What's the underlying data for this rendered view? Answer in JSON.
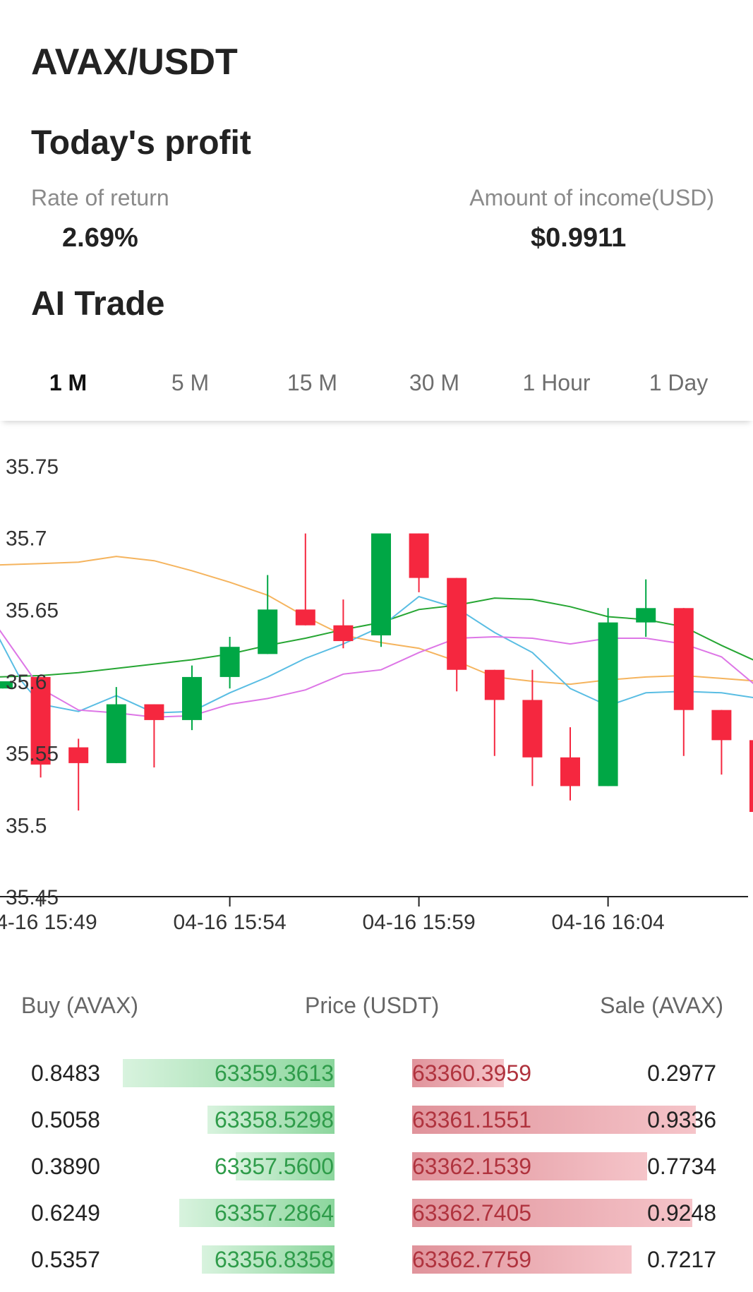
{
  "header": {
    "pair": "AVAX/USDT"
  },
  "profit": {
    "title": "Today's profit",
    "rate_label": "Rate of return",
    "rate_value": "2.69%",
    "income_label": "Amount of income(USD)",
    "income_value": "$0.9911"
  },
  "ai_trade": {
    "title": "AI Trade",
    "tabs": [
      "1 M",
      "5 M",
      "15 M",
      "30 M",
      "1 Hour",
      "1 Day"
    ],
    "active_tab": "1 M"
  },
  "colors": {
    "up": "#00a745",
    "down": "#f5273f",
    "ma1": "#f5b45e",
    "ma2": "#26a633",
    "ma3": "#59bde3",
    "ma4": "#dd76e6"
  },
  "chart_data": {
    "type": "candlestick",
    "ylim": [
      35.45,
      35.75
    ],
    "y_ticks": [
      "35.75",
      "35.7",
      "35.65",
      "35.6",
      "35.55",
      "35.5",
      "35.45"
    ],
    "x_ticks": [
      "04-16 15:49",
      "04-16 15:54",
      "04-16 15:59",
      "04-16 16:04"
    ],
    "candles": [
      {
        "t": "15:48",
        "open": 35.595,
        "close": 35.6,
        "high": 35.6,
        "low": 35.595
      },
      {
        "t": "15:49",
        "open": 35.603,
        "close": 35.542,
        "high": 35.603,
        "low": 35.533
      },
      {
        "t": "15:50",
        "open": 35.554,
        "close": 35.543,
        "high": 35.56,
        "low": 35.51
      },
      {
        "t": "15:51",
        "open": 35.543,
        "close": 35.584,
        "high": 35.596,
        "low": 35.543
      },
      {
        "t": "15:52",
        "open": 35.584,
        "close": 35.573,
        "high": 35.584,
        "low": 35.54
      },
      {
        "t": "15:53",
        "open": 35.573,
        "close": 35.603,
        "high": 35.611,
        "low": 35.566
      },
      {
        "t": "15:54",
        "open": 35.603,
        "close": 35.624,
        "high": 35.631,
        "low": 35.595
      },
      {
        "t": "15:55",
        "open": 35.619,
        "close": 35.65,
        "high": 35.674,
        "low": 35.619
      },
      {
        "t": "15:56",
        "open": 35.65,
        "close": 35.639,
        "high": 35.703,
        "low": 35.639
      },
      {
        "t": "15:57",
        "open": 35.639,
        "close": 35.628,
        "high": 35.657,
        "low": 35.623
      },
      {
        "t": "15:58",
        "open": 35.632,
        "close": 35.703,
        "high": 35.703,
        "low": 35.624
      },
      {
        "t": "15:59",
        "open": 35.703,
        "close": 35.672,
        "high": 35.703,
        "low": 35.662
      },
      {
        "t": "16:00",
        "open": 35.672,
        "close": 35.608,
        "high": 35.672,
        "low": 35.593
      },
      {
        "t": "16:01",
        "open": 35.608,
        "close": 35.587,
        "high": 35.608,
        "low": 35.548
      },
      {
        "t": "16:02",
        "open": 35.587,
        "close": 35.547,
        "high": 35.608,
        "low": 35.527
      },
      {
        "t": "16:03",
        "open": 35.547,
        "close": 35.527,
        "high": 35.568,
        "low": 35.517
      },
      {
        "t": "16:04",
        "open": 35.527,
        "close": 35.641,
        "high": 35.651,
        "low": 35.527
      },
      {
        "t": "16:05",
        "open": 35.641,
        "close": 35.651,
        "high": 35.671,
        "low": 35.631
      },
      {
        "t": "16:06",
        "open": 35.651,
        "close": 35.58,
        "high": 35.651,
        "low": 35.548
      },
      {
        "t": "16:07",
        "open": 35.58,
        "close": 35.559,
        "high": 35.58,
        "low": 35.535
      },
      {
        "t": "16:08",
        "open": 35.559,
        "close": 35.509,
        "high": 35.559,
        "low": 35.509
      }
    ],
    "moving_averages": [
      {
        "color": "#f5b45e",
        "points": [
          [
            -0.2,
            35.681
          ],
          [
            1,
            35.682
          ],
          [
            2,
            35.683
          ],
          [
            3,
            35.687
          ],
          [
            4,
            35.684
          ],
          [
            5,
            35.677
          ],
          [
            6,
            35.669
          ],
          [
            7,
            35.66
          ],
          [
            8,
            35.645
          ],
          [
            9,
            35.632
          ],
          [
            10,
            35.627
          ],
          [
            11,
            35.623
          ],
          [
            12,
            35.614
          ],
          [
            13,
            35.603
          ],
          [
            14,
            35.6
          ],
          [
            15,
            35.598
          ],
          [
            16,
            35.601
          ],
          [
            17,
            35.603
          ],
          [
            18,
            35.604
          ],
          [
            19,
            35.602
          ],
          [
            20,
            35.6
          ]
        ]
      },
      {
        "color": "#26a633",
        "points": [
          [
            -0.2,
            35.603
          ],
          [
            1,
            35.604
          ],
          [
            2,
            35.606
          ],
          [
            3,
            35.609
          ],
          [
            4,
            35.612
          ],
          [
            5,
            35.615
          ],
          [
            6,
            35.619
          ],
          [
            7,
            35.625
          ],
          [
            8,
            35.63
          ],
          [
            9,
            35.636
          ],
          [
            10,
            35.641
          ],
          [
            11,
            35.65
          ],
          [
            12,
            35.653
          ],
          [
            13,
            35.658
          ],
          [
            14,
            35.657
          ],
          [
            15,
            35.652
          ],
          [
            16,
            35.645
          ],
          [
            17,
            35.643
          ],
          [
            18,
            35.638
          ],
          [
            19,
            35.625
          ],
          [
            20,
            35.613
          ]
        ]
      },
      {
        "color": "#59bde3",
        "points": [
          [
            -0.2,
            35.635
          ],
          [
            0.5,
            35.6
          ],
          [
            1,
            35.584
          ],
          [
            2,
            35.579
          ],
          [
            3,
            35.59
          ],
          [
            4,
            35.578
          ],
          [
            5,
            35.579
          ],
          [
            6,
            35.592
          ],
          [
            7,
            35.603
          ],
          [
            8,
            35.616
          ],
          [
            9,
            35.626
          ],
          [
            10,
            35.638
          ],
          [
            11,
            35.659
          ],
          [
            12,
            35.651
          ],
          [
            13,
            35.634
          ],
          [
            14,
            35.62
          ],
          [
            15,
            35.595
          ],
          [
            16,
            35.583
          ],
          [
            17,
            35.592
          ],
          [
            18,
            35.593
          ],
          [
            19,
            35.592
          ],
          [
            20,
            35.588
          ]
        ]
      },
      {
        "color": "#dd76e6",
        "points": [
          [
            -0.2,
            35.64
          ],
          [
            1,
            35.595
          ],
          [
            2,
            35.58
          ],
          [
            3,
            35.578
          ],
          [
            4,
            35.575
          ],
          [
            5,
            35.576
          ],
          [
            6,
            35.584
          ],
          [
            7,
            35.588
          ],
          [
            8,
            35.594
          ],
          [
            9,
            35.605
          ],
          [
            10,
            35.608
          ],
          [
            11,
            35.62
          ],
          [
            12,
            35.63
          ],
          [
            13,
            35.631
          ],
          [
            14,
            35.63
          ],
          [
            15,
            35.626
          ],
          [
            16,
            35.63
          ],
          [
            17,
            35.63
          ],
          [
            18,
            35.626
          ],
          [
            19,
            35.617
          ],
          [
            20,
            35.595
          ]
        ]
      }
    ]
  },
  "orderbook": {
    "buy_label": "Buy (AVAX)",
    "price_label": "Price (USDT)",
    "sale_label": "Sale (AVAX)",
    "rows": [
      {
        "buy_amount": "0.8483",
        "buy_price": "63359.3613",
        "buy_depth": 0.75,
        "sell_price": "63360.3959",
        "sell_amount": "0.2977",
        "sell_depth": 0.3
      },
      {
        "buy_amount": "0.5058",
        "buy_price": "63358.5298",
        "buy_depth": 0.45,
        "sell_price": "63361.1551",
        "sell_amount": "0.9336",
        "sell_depth": 0.93
      },
      {
        "buy_amount": "0.3890",
        "buy_price": "63357.5600",
        "buy_depth": 0.35,
        "sell_price": "63362.1539",
        "sell_amount": "0.7734",
        "sell_depth": 0.77
      },
      {
        "buy_amount": "0.6249",
        "buy_price": "63357.2864",
        "buy_depth": 0.55,
        "sell_price": "63362.7405",
        "sell_amount": "0.9248",
        "sell_depth": 0.92
      },
      {
        "buy_amount": "0.5357",
        "buy_price": "63356.8358",
        "buy_depth": 0.47,
        "sell_price": "63362.7759",
        "sell_amount": "0.7217",
        "sell_depth": 0.72
      }
    ]
  }
}
